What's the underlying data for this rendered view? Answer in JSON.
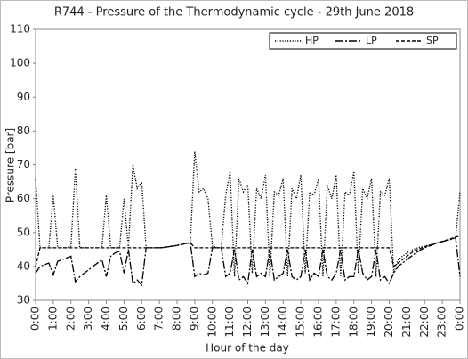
{
  "chart_data": {
    "type": "line",
    "title": "R744 - Pressure of the Thermodynamic cycle - 29th June 2018",
    "x_label": "Hour of the day",
    "y_label": "Pressure [bar]",
    "legend": "top-right",
    "grid": false,
    "xlim": [
      0,
      24
    ],
    "xticks": [
      {
        "value": 0,
        "label": "0:00"
      },
      {
        "value": 1,
        "label": "1:00"
      },
      {
        "value": 2,
        "label": "2:00"
      },
      {
        "value": 3,
        "label": "3:00"
      },
      {
        "value": 4,
        "label": "4:00"
      },
      {
        "value": 5,
        "label": "5:00"
      },
      {
        "value": 6,
        "label": "6:00"
      },
      {
        "value": 7,
        "label": "7:00"
      },
      {
        "value": 8,
        "label": "8:00"
      },
      {
        "value": 9,
        "label": "9:00"
      },
      {
        "value": 10,
        "label": "10:00"
      },
      {
        "value": 11,
        "label": "11:00"
      },
      {
        "value": 12,
        "label": "12:00"
      },
      {
        "value": 13,
        "label": "13:00"
      },
      {
        "value": 14,
        "label": "14:00"
      },
      {
        "value": 15,
        "label": "15:00"
      },
      {
        "value": 16,
        "label": "16:00"
      },
      {
        "value": 17,
        "label": "17:00"
      },
      {
        "value": 18,
        "label": "18:00"
      },
      {
        "value": 19,
        "label": "19:00"
      },
      {
        "value": 20,
        "label": "20:00"
      },
      {
        "value": 21,
        "label": "21:00"
      },
      {
        "value": 22,
        "label": "22:00"
      },
      {
        "value": 23,
        "label": "23:00"
      },
      {
        "value": 24,
        "label": "0:00"
      }
    ],
    "ylim": [
      30,
      110
    ],
    "yticks": [
      30,
      40,
      50,
      60,
      70,
      80,
      90,
      100,
      110
    ],
    "x": [
      0,
      0.25,
      0.5,
      0.75,
      1,
      1.25,
      1.5,
      1.75,
      2,
      2.25,
      2.5,
      2.75,
      3,
      3.25,
      3.5,
      3.75,
      4,
      4.25,
      4.5,
      4.75,
      5,
      5.25,
      5.5,
      5.75,
      6,
      6.25,
      6.5,
      6.75,
      7,
      7.25,
      7.5,
      7.75,
      8,
      8.25,
      8.5,
      8.75,
      9,
      9.25,
      9.5,
      9.75,
      10,
      10.25,
      10.5,
      10.75,
      11,
      11.25,
      11.5,
      11.75,
      12,
      12.25,
      12.5,
      12.75,
      13,
      13.25,
      13.5,
      13.75,
      14,
      14.25,
      14.5,
      14.75,
      15,
      15.25,
      15.5,
      15.75,
      16,
      16.25,
      16.5,
      16.75,
      17,
      17.25,
      17.5,
      17.75,
      18,
      18.25,
      18.5,
      18.75,
      19,
      19.25,
      19.5,
      19.75,
      20,
      20.25,
      20.5,
      20.75,
      21,
      21.25,
      21.5,
      21.75,
      22,
      22.25,
      22.5,
      22.75,
      23,
      23.25,
      23.5,
      23.75,
      24
    ],
    "series": [
      {
        "name": "HP",
        "color": "#000000",
        "dash": "1.2,1.6",
        "values": [
          66,
          45.5,
          45.5,
          45.5,
          61,
          45.5,
          45.5,
          45.5,
          46,
          69,
          45.5,
          45.5,
          45.5,
          45.5,
          45.5,
          45.5,
          61,
          45.5,
          45.5,
          45.5,
          60,
          45.5,
          70,
          63,
          65,
          45.5,
          45.5,
          45.5,
          45.5,
          45.6,
          45.8,
          46,
          46.2,
          46.5,
          46.8,
          47,
          74,
          62,
          63,
          60,
          46,
          45.5,
          45.5,
          61,
          68,
          37,
          66,
          62,
          64,
          38,
          63,
          60,
          67,
          37,
          62,
          61,
          66,
          37,
          63,
          60,
          67,
          38,
          62,
          61,
          66,
          37,
          64,
          60,
          67,
          37,
          62,
          61,
          68,
          38,
          63,
          60,
          66,
          37,
          62,
          61,
          66,
          38,
          42,
          43,
          44,
          44.8,
          45.3,
          45.7,
          46,
          46.3,
          46.6,
          47,
          47.3,
          47.7,
          48,
          48.5,
          62
        ]
      },
      {
        "name": "LP",
        "color": "#000000",
        "dash": "9,2,2,2",
        "values": [
          38,
          40,
          40.5,
          41,
          37.5,
          41.5,
          42,
          42.5,
          43,
          35.5,
          37,
          38,
          39,
          40,
          41,
          42,
          37,
          43,
          44,
          44.5,
          38,
          45,
          35,
          36,
          34.5,
          45.5,
          45.5,
          45.5,
          45.5,
          45.6,
          45.8,
          46,
          46.2,
          46.5,
          46.8,
          47,
          37,
          38,
          37.5,
          38,
          45.5,
          45.5,
          45.5,
          37,
          38,
          45,
          36,
          37,
          35,
          45,
          37,
          38,
          37,
          45,
          36,
          37,
          38,
          45,
          37,
          36,
          37,
          45,
          36,
          38,
          37,
          45,
          37,
          36,
          38,
          45,
          36,
          37,
          37,
          45,
          38,
          36,
          37,
          45,
          36,
          37,
          35,
          38,
          40,
          41,
          42,
          43,
          44,
          44.8,
          45.5,
          46,
          46.5,
          47,
          47.3,
          47.7,
          48,
          48.5,
          37
        ]
      },
      {
        "name": "SP",
        "color": "#000000",
        "dash": "4,2",
        "values": [
          40,
          45.5,
          45.5,
          45.5,
          45.5,
          45.5,
          45.5,
          45.5,
          45.5,
          45.5,
          45.5,
          45.5,
          45.5,
          45.5,
          45.5,
          45.5,
          45.5,
          45.5,
          45.5,
          45.5,
          45.5,
          45.5,
          45.5,
          45.5,
          45.5,
          45.5,
          45.5,
          45.5,
          45.5,
          45.6,
          45.8,
          46,
          46.2,
          46.5,
          46.8,
          47,
          45.5,
          45.5,
          45.5,
          45.5,
          45.5,
          45.5,
          45.5,
          45.5,
          45.5,
          45.5,
          45.5,
          45.5,
          45.5,
          45.5,
          45.5,
          45.5,
          45.5,
          45.5,
          45.5,
          45.5,
          45.5,
          45.5,
          45.5,
          45.5,
          45.5,
          45.5,
          45.5,
          45.5,
          45.5,
          45.5,
          45.5,
          45.5,
          45.5,
          45.5,
          45.5,
          45.5,
          45.5,
          45.5,
          45.5,
          45.5,
          45.5,
          45.5,
          45.5,
          45.5,
          45.5,
          40,
          41,
          42,
          43,
          44,
          44.8,
          45.3,
          45.8,
          46.2,
          46.6,
          47,
          47.4,
          47.8,
          48.2,
          48.7,
          49
        ]
      }
    ]
  }
}
